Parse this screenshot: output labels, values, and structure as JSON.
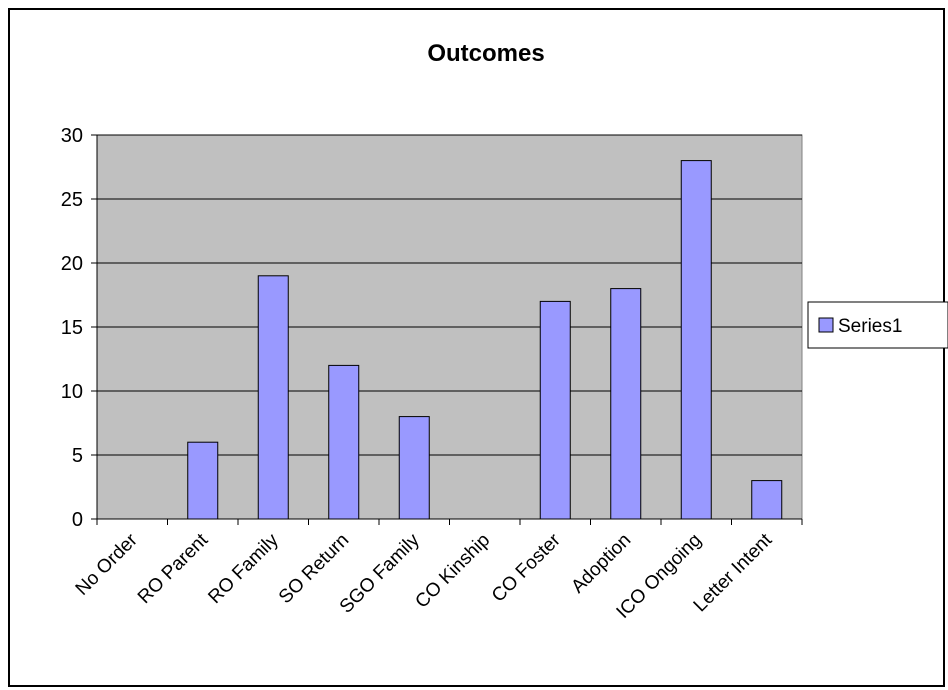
{
  "chart_data": {
    "type": "bar",
    "title": "Outcomes",
    "xlabel": "",
    "ylabel": "",
    "categories": [
      "No Order",
      "RO Parent",
      "RO Family",
      "SO Return",
      "SGO Family",
      "CO Kinship",
      "CO Foster",
      "Adoption",
      "ICO Ongoing",
      "Letter Intent"
    ],
    "series": [
      {
        "name": "Series1",
        "values": [
          0,
          6,
          19,
          12,
          8,
          0,
          17,
          18,
          28,
          3
        ]
      }
    ],
    "ylim": [
      0,
      30
    ],
    "yticks": [
      0,
      5,
      10,
      15,
      20,
      25,
      30
    ],
    "grid": true,
    "legend_position": "right",
    "colors": {
      "bar": "#9999ff",
      "plot_background": "#c0c0c0",
      "gridline": "#000000"
    }
  }
}
